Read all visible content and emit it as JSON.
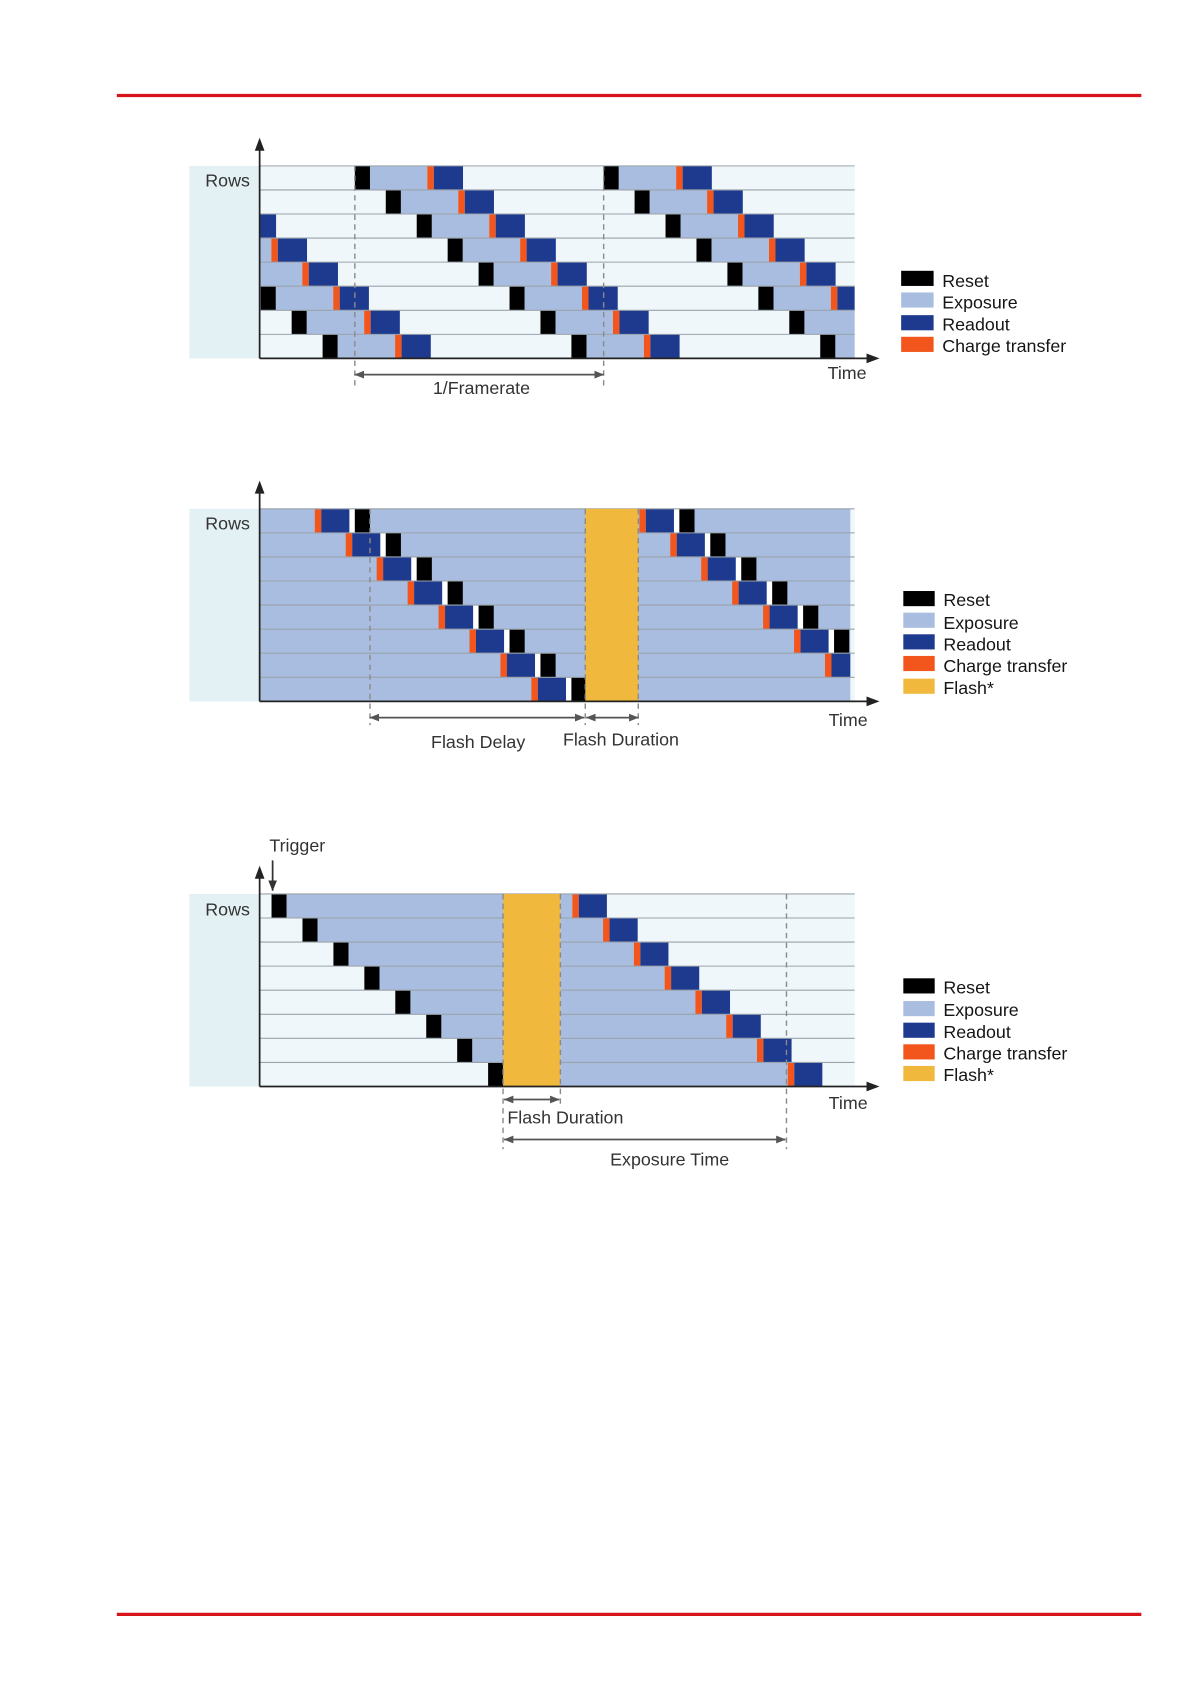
{
  "colors": {
    "rule": "#d7141a",
    "reset": "#000000",
    "exposure": "#a8bddf",
    "readout": "#1e3a8f",
    "charge_transfer": "#f2561c",
    "flash": "#f0b83c",
    "gap": "#ffffff",
    "lane": "#f0f7fa",
    "panel": "#e3f1f4"
  },
  "diagrams": [
    {
      "rows_label": "Rows",
      "time_label": "Time",
      "period_label": "1/Framerate",
      "legend": [
        "Reset",
        "Exposure",
        "Readout",
        "Charge transfer"
      ]
    },
    {
      "rows_label": "Rows",
      "time_label": "Time",
      "flash_delay_label": "Flash Delay",
      "flash_duration_label": "Flash Duration",
      "legend": [
        "Reset",
        "Exposure",
        "Readout",
        "Charge transfer",
        "Flash*"
      ]
    },
    {
      "trigger_label": "Trigger",
      "rows_label": "Rows",
      "time_label": "Time",
      "flash_duration_label": "Flash Duration",
      "exposure_time_label": "Exposure Time",
      "legend": [
        "Reset",
        "Exposure",
        "Readout",
        "Charge transfer",
        "Flash*"
      ]
    }
  ]
}
